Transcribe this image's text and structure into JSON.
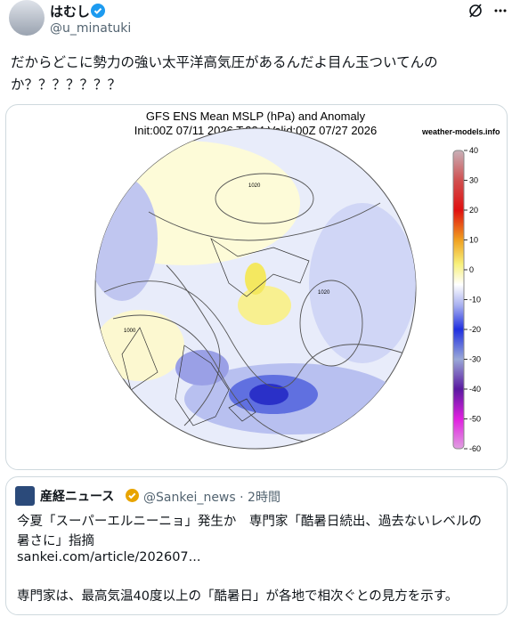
{
  "tweet": {
    "display_name": "はむし",
    "handle": "@u_minatuki",
    "text_lines": [
      "だからどこに勢力の強い太平洋高気圧があるんだよ目ん玉ついてんの",
      "か？？？？？？？"
    ],
    "image": {
      "title": "GFS ENS Mean MSLP (hPa) and Anomaly",
      "subtitle": "Init:00Z 07/11 2026 T:384 Valid:00Z 07/27 2026",
      "source": "weather-models.info",
      "contour_labels": [
        "1020",
        "1020",
        "1000"
      ],
      "colorbar_ticks": [
        40,
        30,
        20,
        10,
        0,
        -10,
        -20,
        -30,
        -40,
        -50,
        -60
      ]
    },
    "quote": {
      "name": "産経ニュース",
      "handle_time": "@Sankei_news · 2時間",
      "headline_lines": [
        "今夏「スーパーエルニーニョ」発生か　専門家「酷暑日続出、過去ないレベルの",
        "暑さに」指摘"
      ],
      "link": "sankei.com/article/202607...",
      "body": "専門家は、最高気温40度以上の「酷暑日」が各地で相次ぐとの見方を示す。"
    }
  }
}
